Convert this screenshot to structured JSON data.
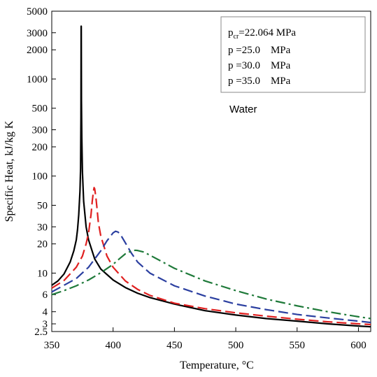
{
  "chart_data": {
    "type": "line",
    "title": "",
    "xlabel": "Temperature, °C",
    "ylabel": "Specific Heat, kJ/kg K",
    "xlim": [
      350,
      610
    ],
    "ylim": [
      2.5,
      5000
    ],
    "yscale": "log",
    "grid": false,
    "legend_position": "top-right",
    "x_ticks": [
      350,
      400,
      450,
      500,
      550,
      600
    ],
    "y_ticks": [
      2.5,
      3,
      4,
      6,
      10,
      20,
      30,
      50,
      100,
      200,
      300,
      500,
      1000,
      2000,
      3000,
      5000
    ],
    "y_tick_labels": [
      "2.5",
      "3",
      "4",
      "6",
      "10",
      "20",
      "30",
      "50",
      "100",
      "200",
      "300",
      "500",
      "1000",
      "2000",
      "3000",
      "5000"
    ],
    "annotation": "Water",
    "legend": [
      {
        "label_main": "p",
        "label_sub": "cr",
        "label_rest": "=22.064 MPa",
        "color": "#000000",
        "dash": "solid"
      },
      {
        "label_main": "p",
        "label_sub": "",
        "label_rest": " =25.0    MPa",
        "color": "#e02020",
        "dash": "dashed"
      },
      {
        "label_main": "p",
        "label_sub": "",
        "label_rest": " =30.0    MPa",
        "color": "#2b3fa0",
        "dash": "dashed"
      },
      {
        "label_main": "p",
        "label_sub": "",
        "label_rest": " =35.0    MPa",
        "color": "#1f7a3a",
        "dash": "dashdot"
      }
    ],
    "series": [
      {
        "color": "#000000",
        "x": [
          350,
          355,
          360,
          365,
          368,
          370,
          371,
          372,
          373,
          373.5,
          373.8,
          373.95,
          374.05,
          374.2,
          374.5,
          375,
          376,
          378,
          380,
          385,
          390,
          400,
          410,
          420,
          430,
          450,
          475,
          500,
          525,
          550,
          575,
          600,
          610
        ],
        "y": [
          7.5,
          8.3,
          9.8,
          13,
          17,
          22,
          28,
          40,
          70,
          120,
          400,
          3500,
          3500,
          600,
          250,
          110,
          55,
          30,
          22,
          14,
          11,
          8.5,
          7.1,
          6.2,
          5.6,
          4.8,
          4.1,
          3.7,
          3.4,
          3.2,
          3.0,
          2.85,
          2.8
        ]
      },
      {
        "color": "#e02020",
        "x": [
          350,
          360,
          370,
          375,
          378,
          380,
          382,
          383,
          384,
          384.5,
          385,
          386,
          387,
          388,
          390,
          395,
          400,
          410,
          420,
          430,
          450,
          475,
          500,
          525,
          550,
          575,
          600,
          610
        ],
        "y": [
          7.0,
          8.4,
          11.5,
          15,
          20,
          26,
          40,
          55,
          70,
          76,
          74,
          60,
          45,
          33,
          24,
          15,
          11.5,
          8.3,
          6.8,
          5.9,
          4.9,
          4.3,
          3.9,
          3.6,
          3.35,
          3.15,
          3.0,
          2.95
        ]
      },
      {
        "color": "#2b3fa0",
        "x": [
          350,
          360,
          370,
          380,
          390,
          395,
          400,
          402,
          404,
          406,
          410,
          415,
          420,
          430,
          450,
          475,
          500,
          525,
          550,
          575,
          600,
          610
        ],
        "y": [
          6.4,
          7.5,
          8.8,
          11.5,
          17,
          21.5,
          26,
          27,
          26.5,
          25,
          20.5,
          16,
          13,
          10,
          7.4,
          5.8,
          4.8,
          4.2,
          3.75,
          3.45,
          3.2,
          3.1
        ]
      },
      {
        "color": "#1f7a3a",
        "x": [
          350,
          360,
          370,
          380,
          390,
          400,
          405,
          410,
          415,
          418,
          420,
          425,
          430,
          440,
          450,
          475,
          500,
          525,
          550,
          575,
          600,
          610
        ],
        "y": [
          6.0,
          6.6,
          7.4,
          8.5,
          10.1,
          12.3,
          14,
          15.8,
          16.9,
          17.2,
          17.1,
          16.5,
          15.3,
          13.1,
          11.2,
          8.3,
          6.6,
          5.4,
          4.6,
          4.0,
          3.55,
          3.4
        ]
      }
    ]
  }
}
